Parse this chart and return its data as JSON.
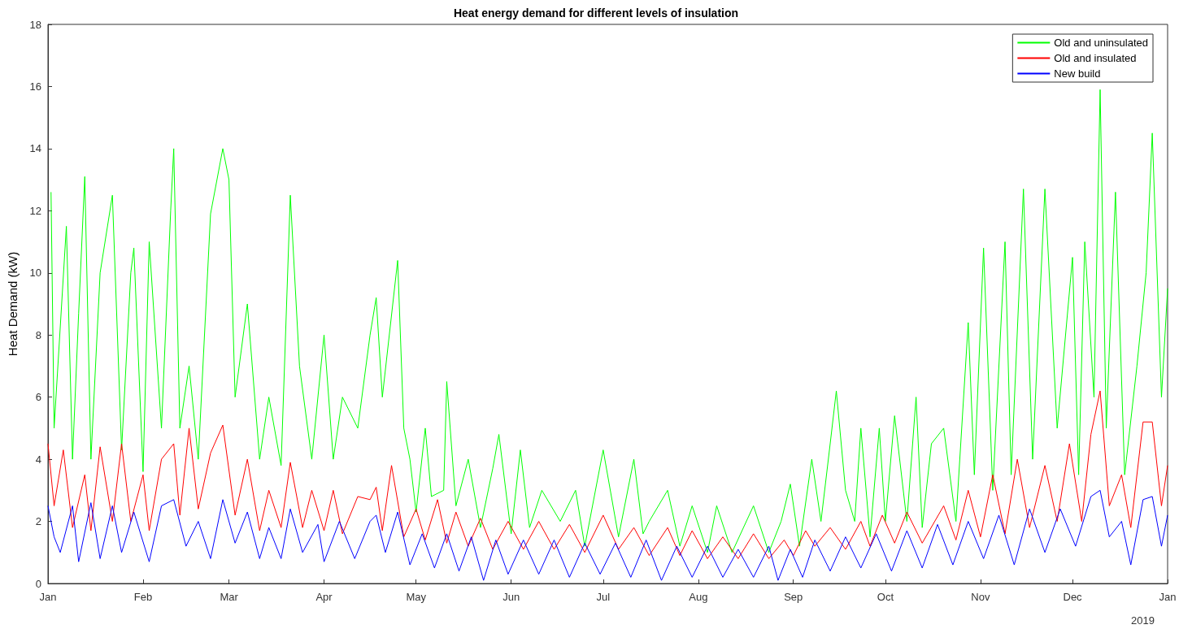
{
  "chart_data": {
    "type": "line",
    "title": "Heat energy demand for different levels of insulation",
    "ylabel": "Heat Demand (kW)",
    "annotations": [
      "2019"
    ],
    "xlim": [
      "2019-01-01",
      "2020-01-01"
    ],
    "xticks": [
      {
        "value": "2019-01-01",
        "label": "Jan"
      },
      {
        "value": "2019-02-01",
        "label": "Feb"
      },
      {
        "value": "2019-03-01",
        "label": "Mar"
      },
      {
        "value": "2019-04-01",
        "label": "Apr"
      },
      {
        "value": "2019-05-01",
        "label": "May"
      },
      {
        "value": "2019-06-01",
        "label": "Jun"
      },
      {
        "value": "2019-07-01",
        "label": "Jul"
      },
      {
        "value": "2019-08-01",
        "label": "Aug"
      },
      {
        "value": "2019-09-01",
        "label": "Sep"
      },
      {
        "value": "2019-10-01",
        "label": "Oct"
      },
      {
        "value": "2019-11-01",
        "label": "Nov"
      },
      {
        "value": "2019-12-01",
        "label": "Dec"
      },
      {
        "value": "2020-01-01",
        "label": "Jan"
      }
    ],
    "ylim": [
      0,
      18
    ],
    "yticks": [
      0,
      2,
      4,
      6,
      8,
      10,
      12,
      14,
      16,
      18
    ],
    "grid": false,
    "legend": "top right",
    "marker": "none",
    "line_style": "solid",
    "series": [
      {
        "name": "Old and uninsulated",
        "color": "#00ff00",
        "x": [
          "2019-01-02",
          "2019-01-03",
          "2019-01-07",
          "2019-01-09",
          "2019-01-11",
          "2019-01-13",
          "2019-01-15",
          "2019-01-18",
          "2019-01-22",
          "2019-01-25",
          "2019-01-28",
          "2019-01-29",
          "2019-02-01",
          "2019-02-03",
          "2019-02-07",
          "2019-02-10",
          "2019-02-11",
          "2019-02-13",
          "2019-02-16",
          "2019-02-19",
          "2019-02-23",
          "2019-02-27",
          "2019-03-01",
          "2019-03-03",
          "2019-03-07",
          "2019-03-11",
          "2019-03-14",
          "2019-03-18",
          "2019-03-21",
          "2019-03-24",
          "2019-03-28",
          "2019-04-01",
          "2019-04-04",
          "2019-04-07",
          "2019-04-12",
          "2019-04-16",
          "2019-04-18",
          "2019-04-20",
          "2019-04-25",
          "2019-04-27",
          "2019-04-29",
          "2019-05-01",
          "2019-05-04",
          "2019-05-06",
          "2019-05-10",
          "2019-05-11",
          "2019-05-14",
          "2019-05-18",
          "2019-05-22",
          "2019-05-26",
          "2019-05-28",
          "2019-06-01",
          "2019-06-04",
          "2019-06-07",
          "2019-06-11",
          "2019-06-17",
          "2019-06-22",
          "2019-06-25",
          "2019-07-01",
          "2019-07-06",
          "2019-07-11",
          "2019-07-14",
          "2019-07-16",
          "2019-07-22",
          "2019-07-26",
          "2019-07-30",
          "2019-08-04",
          "2019-08-07",
          "2019-08-12",
          "2019-08-19",
          "2019-08-24",
          "2019-08-28",
          "2019-08-31",
          "2019-09-03",
          "2019-09-07",
          "2019-09-10",
          "2019-09-13",
          "2019-09-15",
          "2019-09-18",
          "2019-09-21",
          "2019-09-23",
          "2019-09-26",
          "2019-09-29",
          "2019-10-01",
          "2019-10-04",
          "2019-10-08",
          "2019-10-11",
          "2019-10-13",
          "2019-10-16",
          "2019-10-20",
          "2019-10-24",
          "2019-10-28",
          "2019-10-30",
          "2019-11-02",
          "2019-11-05",
          "2019-11-09",
          "2019-11-11",
          "2019-11-15",
          "2019-11-18",
          "2019-11-22",
          "2019-11-26",
          "2019-12-01",
          "2019-12-03",
          "2019-12-05",
          "2019-12-08",
          "2019-12-10",
          "2019-12-12",
          "2019-12-15",
          "2019-12-18",
          "2019-12-22",
          "2019-12-25",
          "2019-12-27",
          "2019-12-30",
          "2020-01-01"
        ],
        "values": [
          12.6,
          5,
          11.5,
          4,
          8.7,
          13.1,
          4,
          10,
          12.5,
          4.3,
          10,
          10.8,
          3.6,
          11,
          5,
          12,
          14,
          5,
          7,
          4,
          11.9,
          14,
          13,
          6,
          9,
          4,
          6,
          3.8,
          12.5,
          7,
          4,
          8,
          4,
          6,
          5,
          8,
          9.2,
          6,
          10.4,
          5,
          4,
          2.3,
          5,
          2.8,
          3,
          6.5,
          2.5,
          4,
          1.8,
          3.7,
          4.8,
          1.6,
          4.3,
          1.8,
          3,
          2,
          3,
          1.2,
          4.3,
          1.5,
          4,
          1.6,
          2,
          3,
          1.2,
          2.5,
          1,
          2.5,
          1,
          2.5,
          1,
          2,
          3.2,
          1.2,
          4,
          2,
          4.5,
          6.2,
          3,
          2,
          5,
          1.5,
          5,
          2,
          5.4,
          2,
          6,
          1.8,
          4.5,
          5,
          2,
          8.4,
          3.5,
          10.8,
          3,
          11,
          3.5,
          12.7,
          4,
          12.7,
          5,
          10.5,
          3.5,
          11,
          6,
          15.9,
          5,
          12.6,
          3.5,
          7,
          10,
          14.5,
          6,
          9.5
        ]
      },
      {
        "name": "Old and insulated",
        "color": "#ff0000",
        "x": [
          "2019-01-01",
          "2019-01-03",
          "2019-01-06",
          "2019-01-09",
          "2019-01-13",
          "2019-01-15",
          "2019-01-18",
          "2019-01-22",
          "2019-01-25",
          "2019-01-28",
          "2019-02-01",
          "2019-02-03",
          "2019-02-07",
          "2019-02-11",
          "2019-02-13",
          "2019-02-16",
          "2019-02-19",
          "2019-02-23",
          "2019-02-27",
          "2019-03-03",
          "2019-03-07",
          "2019-03-11",
          "2019-03-14",
          "2019-03-18",
          "2019-03-21",
          "2019-03-25",
          "2019-03-28",
          "2019-04-01",
          "2019-04-04",
          "2019-04-07",
          "2019-04-12",
          "2019-04-16",
          "2019-04-18",
          "2019-04-20",
          "2019-04-23",
          "2019-04-27",
          "2019-05-01",
          "2019-05-04",
          "2019-05-08",
          "2019-05-11",
          "2019-05-14",
          "2019-05-18",
          "2019-05-22",
          "2019-05-26",
          "2019-05-31",
          "2019-06-05",
          "2019-06-10",
          "2019-06-15",
          "2019-06-20",
          "2019-06-25",
          "2019-07-01",
          "2019-07-06",
          "2019-07-11",
          "2019-07-16",
          "2019-07-22",
          "2019-07-26",
          "2019-07-30",
          "2019-08-04",
          "2019-08-09",
          "2019-08-14",
          "2019-08-19",
          "2019-08-24",
          "2019-08-29",
          "2019-09-01",
          "2019-09-05",
          "2019-09-08",
          "2019-09-13",
          "2019-09-18",
          "2019-09-23",
          "2019-09-26",
          "2019-09-30",
          "2019-10-04",
          "2019-10-08",
          "2019-10-13",
          "2019-10-20",
          "2019-10-24",
          "2019-10-28",
          "2019-11-01",
          "2019-11-05",
          "2019-11-09",
          "2019-11-13",
          "2019-11-17",
          "2019-11-22",
          "2019-11-26",
          "2019-11-30",
          "2019-12-04",
          "2019-12-07",
          "2019-12-10",
          "2019-12-13",
          "2019-12-17",
          "2019-12-20",
          "2019-12-24",
          "2019-12-27",
          "2019-12-30",
          "2020-01-01"
        ],
        "values": [
          4.5,
          2.5,
          4.3,
          1.8,
          3.5,
          1.7,
          4.4,
          2,
          4.5,
          2,
          3.5,
          1.7,
          4,
          4.5,
          2.2,
          5,
          2.4,
          4.2,
          5.1,
          2.2,
          4,
          1.7,
          3,
          1.8,
          3.9,
          1.8,
          3,
          1.7,
          3,
          1.6,
          2.8,
          2.7,
          3.1,
          1.7,
          3.8,
          1.5,
          2.4,
          1.4,
          2.7,
          1.3,
          2.3,
          1.2,
          2.1,
          1.1,
          2,
          1.1,
          2,
          1.1,
          1.9,
          1,
          2.2,
          1.1,
          1.8,
          0.9,
          1.8,
          0.9,
          1.7,
          0.8,
          1.5,
          0.8,
          1.6,
          0.8,
          1.4,
          0.9,
          1.7,
          1.2,
          1.8,
          1.1,
          2,
          1.2,
          2.2,
          1.3,
          2.3,
          1.3,
          2.5,
          1.4,
          3,
          1.5,
          3.5,
          1.6,
          4,
          1.8,
          3.8,
          2,
          4.5,
          2,
          4.8,
          6.2,
          2.5,
          3.5,
          1.8,
          5.2,
          5.2,
          2.5,
          3.8
        ]
      },
      {
        "name": "New build",
        "color": "#0000ff",
        "x": [
          "2019-01-01",
          "2019-01-03",
          "2019-01-05",
          "2019-01-09",
          "2019-01-11",
          "2019-01-15",
          "2019-01-18",
          "2019-01-22",
          "2019-01-25",
          "2019-01-29",
          "2019-02-03",
          "2019-02-07",
          "2019-02-11",
          "2019-02-15",
          "2019-02-19",
          "2019-02-23",
          "2019-02-27",
          "2019-03-03",
          "2019-03-07",
          "2019-03-11",
          "2019-03-14",
          "2019-03-18",
          "2019-03-21",
          "2019-03-25",
          "2019-03-30",
          "2019-04-01",
          "2019-04-06",
          "2019-04-11",
          "2019-04-16",
          "2019-04-18",
          "2019-04-21",
          "2019-04-25",
          "2019-04-29",
          "2019-05-03",
          "2019-05-07",
          "2019-05-11",
          "2019-05-15",
          "2019-05-19",
          "2019-05-23",
          "2019-05-27",
          "2019-05-31",
          "2019-06-05",
          "2019-06-10",
          "2019-06-15",
          "2019-06-20",
          "2019-06-25",
          "2019-06-30",
          "2019-07-05",
          "2019-07-10",
          "2019-07-15",
          "2019-07-20",
          "2019-07-25",
          "2019-07-30",
          "2019-08-04",
          "2019-08-09",
          "2019-08-14",
          "2019-08-19",
          "2019-08-24",
          "2019-08-27",
          "2019-08-31",
          "2019-09-04",
          "2019-09-08",
          "2019-09-13",
          "2019-09-18",
          "2019-09-23",
          "2019-09-28",
          "2019-10-03",
          "2019-10-08",
          "2019-10-13",
          "2019-10-18",
          "2019-10-23",
          "2019-10-28",
          "2019-11-02",
          "2019-11-07",
          "2019-11-12",
          "2019-11-17",
          "2019-11-22",
          "2019-11-27",
          "2019-12-02",
          "2019-12-07",
          "2019-12-10",
          "2019-12-13",
          "2019-12-17",
          "2019-12-20",
          "2019-12-24",
          "2019-12-27",
          "2019-12-30",
          "2020-01-01"
        ],
        "values": [
          2.5,
          1.5,
          1,
          2.5,
          0.7,
          2.6,
          0.8,
          2.5,
          1,
          2.3,
          0.7,
          2.5,
          2.7,
          1.2,
          2,
          0.8,
          2.7,
          1.3,
          2.3,
          0.8,
          1.8,
          0.8,
          2.4,
          1,
          1.9,
          0.7,
          2,
          0.8,
          2,
          2.2,
          1,
          2.3,
          0.6,
          1.6,
          0.5,
          1.6,
          0.4,
          1.5,
          0.1,
          1.4,
          0.3,
          1.4,
          0.3,
          1.4,
          0.2,
          1.3,
          0.3,
          1.3,
          0.2,
          1.4,
          0.1,
          1.2,
          0.2,
          1.2,
          0.2,
          1.1,
          0.2,
          1.2,
          0.1,
          1.1,
          0.2,
          1.4,
          0.4,
          1.5,
          0.5,
          1.6,
          0.4,
          1.7,
          0.5,
          1.9,
          0.6,
          2,
          0.8,
          2.2,
          0.6,
          2.4,
          1,
          2.4,
          1.2,
          2.8,
          3,
          1.5,
          2,
          0.6,
          2.7,
          2.8,
          1.2,
          2.2
        ]
      }
    ]
  }
}
